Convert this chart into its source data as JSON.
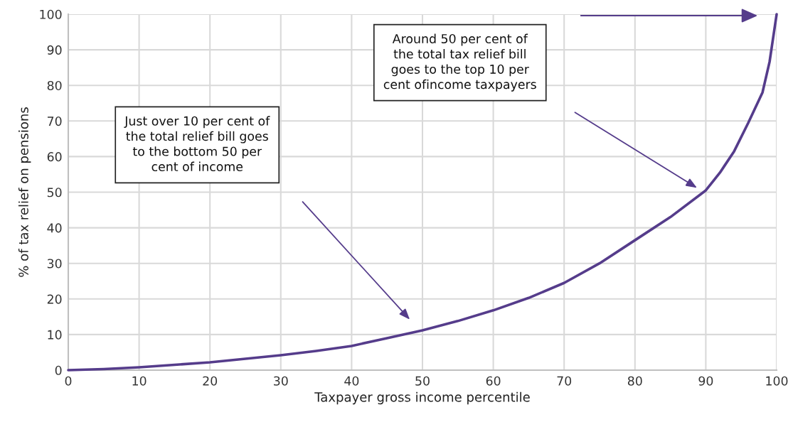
{
  "chart_data": {
    "type": "line",
    "xlabel": "Taxpayer gross income percentile",
    "ylabel": "% of tax relief on pensions",
    "x": [
      0,
      5,
      10,
      15,
      20,
      25,
      30,
      35,
      40,
      45,
      50,
      55,
      60,
      65,
      70,
      75,
      80,
      85,
      90,
      92,
      94,
      96,
      98,
      99,
      100
    ],
    "series": [
      {
        "color": "#553c8b",
        "values": [
          0,
          0.3,
          0.8,
          1.5,
          2.2,
          3.2,
          4.2,
          5.4,
          6.8,
          9,
          11.2,
          13.8,
          16.8,
          20.3,
          24.5,
          30,
          36.5,
          43,
          50.5,
          55.5,
          61.5,
          69.5,
          78,
          86.6,
          100
        ]
      }
    ],
    "xlim": [
      0,
      100
    ],
    "ylim": [
      0,
      100
    ],
    "xticks": [
      0,
      10,
      20,
      30,
      40,
      50,
      60,
      70,
      80,
      90,
      100
    ],
    "yticks": [
      0,
      10,
      20,
      30,
      40,
      50,
      60,
      70,
      80,
      90,
      100
    ],
    "grid": true,
    "marker": "none",
    "line_style": "solid",
    "annotations": [
      "Just over 10 per cent of\nthe total relief bill goes\nto the bottom 50 per\ncent of income",
      "Around 50 per cent of\nthe total tax relief bill\ngoes to the top 10 per\ncent ofincome taxpayers"
    ]
  }
}
